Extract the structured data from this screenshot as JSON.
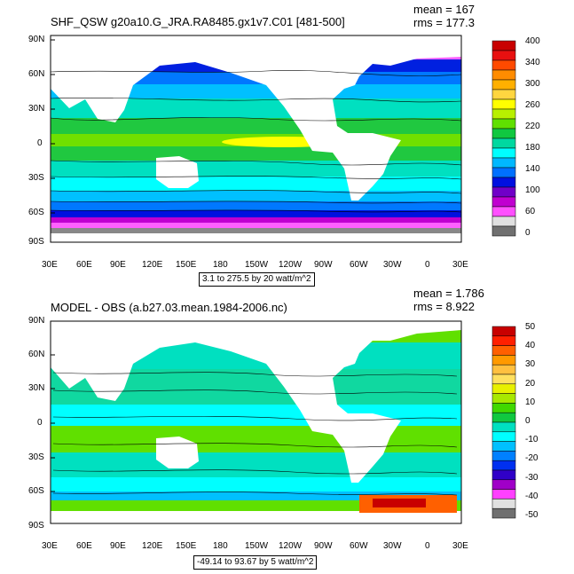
{
  "panels": [
    {
      "title": "SHF_QSW g20a10.G_JRA.RA8485.gx1v7.C01 [481-500]",
      "mean": "mean = 167",
      "rms": "rms = 177.3",
      "range_label": "3.1 to 275.5 by 20 watt/m^2",
      "lat_labels": [
        "90N",
        "60N",
        "30N",
        "0",
        "30S",
        "60S",
        "90S"
      ],
      "lon_labels": [
        "30E",
        "60E",
        "90E",
        "120E",
        "150E",
        "180",
        "150W",
        "120W",
        "90W",
        "60W",
        "30W",
        "0",
        "30E"
      ],
      "colorbar": {
        "labels": [
          "400",
          "340",
          "300",
          "260",
          "220",
          "180",
          "140",
          "100",
          "60",
          "0"
        ],
        "colors": [
          "#c80000",
          "#e81010",
          "#ff4a00",
          "#ff8c00",
          "#ffb000",
          "#ffd640",
          "#ffff00",
          "#b8f000",
          "#60e000",
          "#10c840",
          "#00d8a0",
          "#00ffff",
          "#00b8ff",
          "#0070ff",
          "#0010e0",
          "#7000c8",
          "#c000d0",
          "#ff50ff",
          "#e0e0e0",
          "#707070"
        ]
      }
    },
    {
      "title": "MODEL - OBS (a.b27.03.mean.1984-2006.nc)",
      "mean": "mean = 1.786",
      "rms": "rms = 8.922",
      "range_label": "-49.14 to 93.67 by 5 watt/m^2",
      "lat_labels": [
        "90N",
        "60N",
        "30N",
        "0",
        "30S",
        "60S",
        "90S"
      ],
      "lon_labels": [
        "30E",
        "60E",
        "90E",
        "120E",
        "150E",
        "180",
        "150W",
        "120W",
        "90W",
        "60W",
        "30W",
        "0",
        "30E"
      ],
      "colorbar": {
        "labels": [
          "50",
          "40",
          "30",
          "20",
          "10",
          "0",
          "-10",
          "-20",
          "-30",
          "-40",
          "-50"
        ],
        "colors": [
          "#c80000",
          "#ff2000",
          "#ff6000",
          "#ff9a00",
          "#ffc040",
          "#ffe060",
          "#e8f000",
          "#a8e800",
          "#40d800",
          "#10c840",
          "#00e0c0",
          "#00ffff",
          "#00c0ff",
          "#0080ff",
          "#0030f0",
          "#3000c8",
          "#a000c8",
          "#ff40ff",
          "#e0e0e0",
          "#707070"
        ]
      }
    }
  ]
}
